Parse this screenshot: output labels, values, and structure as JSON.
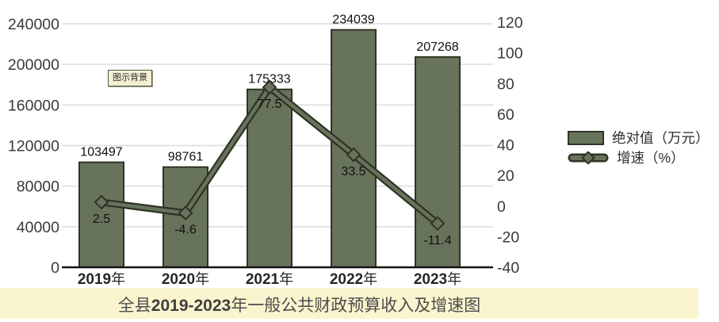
{
  "chart_data": {
    "type": "bar+line-combo",
    "categories": [
      "2019",
      "2020",
      "2021",
      "2022",
      "2023"
    ],
    "category_suffix": "年",
    "series": [
      {
        "name": "绝对值（万元）",
        "type": "bar",
        "axis": "left",
        "values": [
          103497,
          98761,
          175333,
          234039,
          207268
        ]
      },
      {
        "name": "增速（%）",
        "type": "line",
        "axis": "right",
        "values": [
          2.5,
          -4.6,
          77.5,
          33.5,
          -11.4
        ]
      }
    ],
    "left_axis": {
      "min": 0,
      "max": 240000,
      "step": 40000,
      "ticks": [
        0,
        40000,
        80000,
        120000,
        160000,
        200000,
        240000
      ]
    },
    "right_axis": {
      "min": -40,
      "max": 120,
      "step": 20,
      "ticks": [
        -40,
        -20,
        0,
        20,
        40,
        60,
        80,
        100,
        120
      ]
    },
    "grid": true,
    "legend_position": "right",
    "title": "全县2019-2023年一般公共财政预算收入及增速图"
  },
  "tooltip": {
    "label": "图示背景"
  },
  "legend": {
    "items": [
      {
        "label": "绝对值（万元）",
        "swatch": "bar"
      },
      {
        "label": "增速（%）",
        "swatch": "line-diamond"
      }
    ]
  },
  "title": {
    "prefix": "全县",
    "bold": "2019-2023",
    "suffix": "年一般公共财政预算收入及增速图"
  },
  "colors": {
    "bar_fill": "#68735C",
    "bar_border": "#2E3424",
    "line_outline": "#2E3424",
    "line_fill": "#68735C",
    "gridline": "#DBDBDB",
    "axis_line": "#141414",
    "title_band_bg": "#FBF5CF",
    "tooltip_bg": "#F3F0D4"
  }
}
